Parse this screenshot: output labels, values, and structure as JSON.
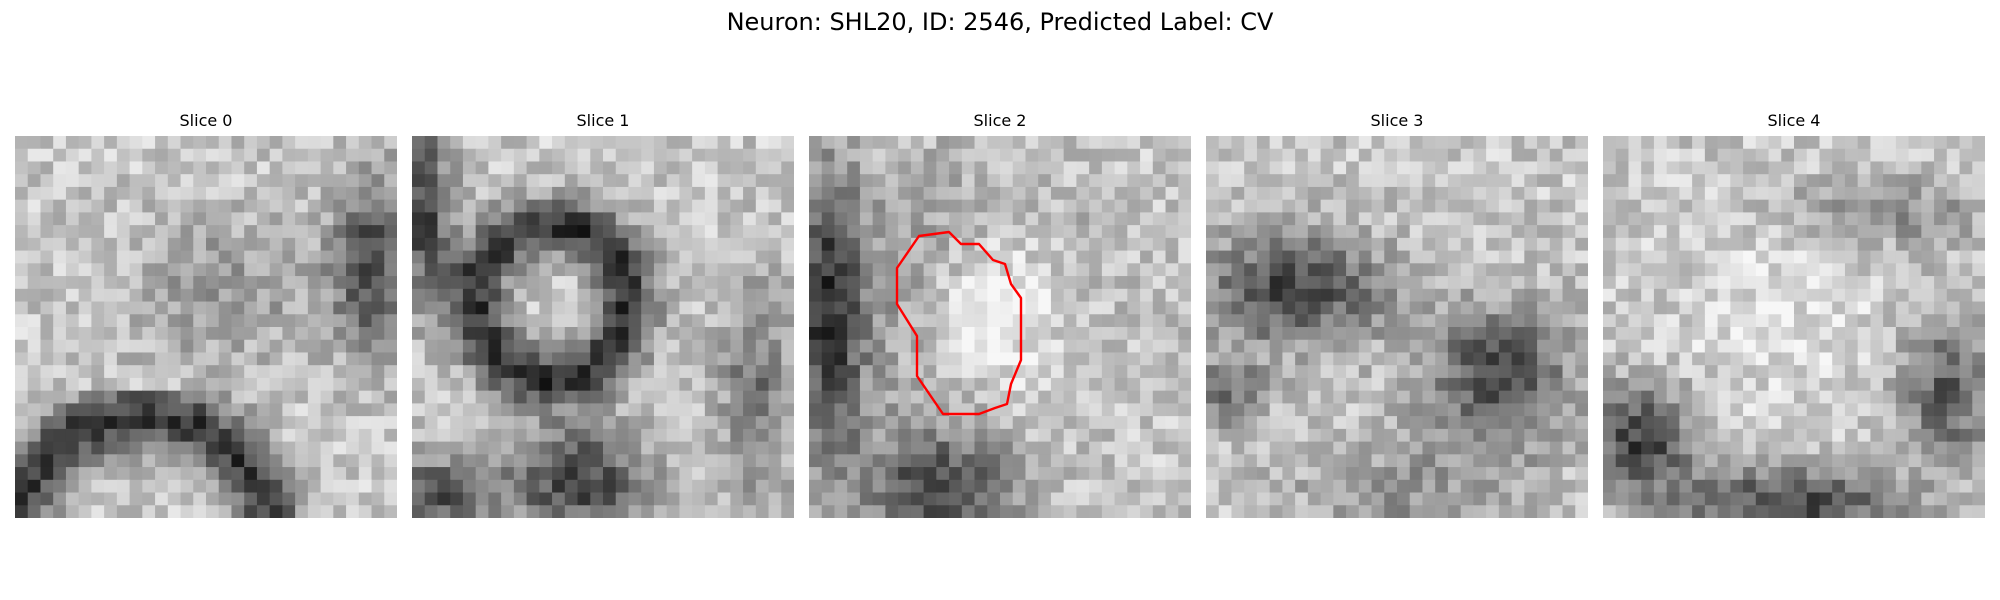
{
  "figure": {
    "title": "Neuron: SHL20, ID: 2546, Predicted Label: CV"
  },
  "panels": [
    {
      "title": "Slice 0"
    },
    {
      "title": "Slice 1"
    },
    {
      "title": "Slice 2"
    },
    {
      "title": "Slice 3"
    },
    {
      "title": "Slice 4"
    }
  ],
  "colors": {
    "background": "#ffffff",
    "contour": "#ff0000",
    "colormap": "grayscale"
  },
  "annotation": {
    "contour_on_panel": 2,
    "contour_description_color": "red"
  }
}
